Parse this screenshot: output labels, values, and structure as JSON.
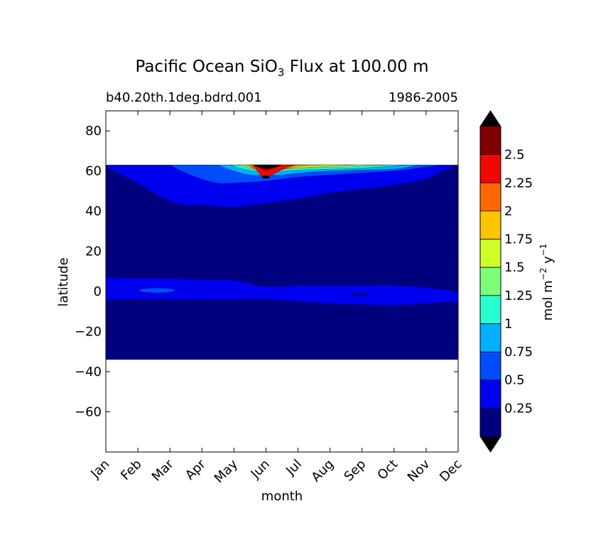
{
  "chart_data": {
    "type": "contour",
    "title": {
      "prefix": "Pacific Ocean SiO",
      "subscript": "3",
      "suffix": " Flux at 100.00 m"
    },
    "subtitle_left": "b40.20th.1deg.bdrd.001",
    "subtitle_right": "1986-2005",
    "xlabel": "month",
    "ylabel": "latitude",
    "x_categories": [
      "Jan",
      "Feb",
      "Mar",
      "Apr",
      "May",
      "Jun",
      "Jul",
      "Aug",
      "Sep",
      "Oct",
      "Nov",
      "Dec"
    ],
    "xlim": [
      1,
      12
    ],
    "ylim": [
      -80,
      90
    ],
    "y_ticks": [
      -60,
      -40,
      -20,
      0,
      20,
      40,
      60,
      80
    ],
    "data_lat_range": [
      -34,
      63
    ],
    "levels": [
      0.25,
      0.5,
      0.75,
      1,
      1.25,
      1.5,
      1.75,
      2,
      2.25,
      2.5
    ],
    "band_colors": [
      "#00007f",
      "#0000f1",
      "#004cff",
      "#00b0ff",
      "#29ffce",
      "#7dff7a",
      "#ceff29",
      "#ffc400",
      "#ff6800",
      "#f10800",
      "#7f0000"
    ],
    "extend_colors": {
      "under": "#000000",
      "over": "#000000"
    },
    "colorbar": {
      "label_main": "mol m",
      "label_exp1": "−2",
      "label_mid": " y",
      "label_exp2": "−1",
      "tick_labels": [
        "0.25",
        "0.5",
        "0.75",
        "1",
        "1.25",
        "1.5",
        "1.75",
        "2",
        "2.25",
        "2.5"
      ]
    },
    "contours": [
      {
        "level_index": 1,
        "upper_lat": 63,
        "lower": [
          [
            1,
            62
          ],
          [
            2,
            54
          ],
          [
            2.5,
            49
          ],
          [
            3,
            45
          ],
          [
            3.5,
            43
          ],
          [
            4,
            43
          ],
          [
            5,
            42
          ],
          [
            6,
            44
          ],
          [
            7,
            46
          ],
          [
            8,
            49
          ],
          [
            9,
            51
          ],
          [
            10,
            53
          ],
          [
            11,
            56
          ],
          [
            11.5,
            60
          ],
          [
            12,
            63
          ]
        ]
      },
      {
        "level_index": 2,
        "upper_lat": 63,
        "lower": [
          [
            3,
            63
          ],
          [
            3.5,
            59
          ],
          [
            4,
            56
          ],
          [
            4.5,
            54
          ],
          [
            5,
            54
          ],
          [
            6,
            55
          ],
          [
            7,
            57
          ],
          [
            8,
            58
          ],
          [
            9,
            59
          ],
          [
            10,
            60
          ],
          [
            11,
            62
          ],
          [
            11.5,
            63
          ]
        ]
      },
      {
        "level_index": 3,
        "upper_lat": 63,
        "lower": [
          [
            4.5,
            63
          ],
          [
            5,
            60
          ],
          [
            5.5,
            58
          ],
          [
            6,
            58
          ],
          [
            6.5,
            58
          ],
          [
            7,
            59
          ],
          [
            8,
            60
          ],
          [
            9,
            60.5
          ],
          [
            10,
            61
          ],
          [
            10.8,
            63
          ]
        ]
      },
      {
        "level_index": 4,
        "upper_lat": 63,
        "lower": [
          [
            4.9,
            63
          ],
          [
            5.3,
            61
          ],
          [
            6,
            59.5
          ],
          [
            7,
            60.5
          ],
          [
            8,
            61
          ],
          [
            9,
            61.5
          ],
          [
            10.4,
            63
          ]
        ]
      },
      {
        "level_index": 5,
        "upper_lat": 63,
        "lower": [
          [
            5.1,
            63
          ],
          [
            5.6,
            61
          ],
          [
            6,
            60.5
          ],
          [
            7,
            61.5
          ],
          [
            8.5,
            62
          ],
          [
            9.8,
            63
          ]
        ]
      },
      {
        "level_index": 6,
        "upper_lat": 63,
        "lower": [
          [
            5.3,
            63
          ],
          [
            5.7,
            61
          ],
          [
            6,
            60.5
          ],
          [
            6.5,
            61
          ],
          [
            7.5,
            62
          ],
          [
            8.8,
            63
          ]
        ]
      },
      {
        "level_index": 7,
        "upper_lat": 63,
        "lower": [
          [
            5.4,
            63
          ],
          [
            5.8,
            60
          ],
          [
            6,
            59.5
          ],
          [
            6.4,
            60.5
          ],
          [
            7.2,
            62.5
          ],
          [
            7.8,
            63
          ]
        ]
      },
      {
        "level_index": 8,
        "upper_lat": 63,
        "lower": [
          [
            5.5,
            63
          ],
          [
            5.8,
            59
          ],
          [
            6,
            58.5
          ],
          [
            6.3,
            59.5
          ],
          [
            6.9,
            62.5
          ],
          [
            7.3,
            63
          ]
        ]
      },
      {
        "level_index": 9,
        "upper_lat": 63,
        "lower": [
          [
            5.6,
            63
          ],
          [
            5.85,
            58
          ],
          [
            6,
            57.2
          ],
          [
            6.2,
            58.2
          ],
          [
            6.6,
            61.5
          ],
          [
            6.9,
            63
          ]
        ]
      },
      {
        "level_index": 10,
        "upper_lat": 63,
        "lower": [
          [
            5.7,
            63
          ],
          [
            5.9,
            60.8
          ],
          [
            6.1,
            60.8
          ],
          [
            6.5,
            63
          ]
        ]
      }
    ],
    "equatorial_band": {
      "level_index": 1,
      "upper": [
        [
          1,
          7
        ],
        [
          3,
          6.5
        ],
        [
          4,
          6
        ],
        [
          5,
          5.5
        ],
        [
          5.5,
          4
        ],
        [
          6,
          2.5
        ],
        [
          7,
          3
        ],
        [
          8,
          3
        ],
        [
          9,
          3
        ],
        [
          10,
          3
        ],
        [
          11,
          2
        ],
        [
          12,
          0
        ]
      ],
      "lower": [
        [
          1,
          -4
        ],
        [
          2,
          -4
        ],
        [
          3,
          -4
        ],
        [
          4,
          -4
        ],
        [
          5,
          -4
        ],
        [
          6,
          -4
        ],
        [
          7,
          -5
        ],
        [
          8,
          -6
        ],
        [
          9,
          -6.5
        ],
        [
          10,
          -7
        ],
        [
          11,
          -6
        ],
        [
          12,
          -5
        ]
      ]
    },
    "equatorial_spots": [
      {
        "level_index": 2,
        "center": [
          2.6,
          0.5
        ],
        "rx": 0.55,
        "ry": 1.2
      },
      {
        "level_index": 0,
        "center": [
          8.95,
          -1.5
        ],
        "rx": 0.25,
        "ry": 0.5
      }
    ],
    "peak_spot": {
      "level_index": 10,
      "center": [
        6,
        57
      ],
      "rx": 0.12,
      "ry": 0.7
    }
  }
}
